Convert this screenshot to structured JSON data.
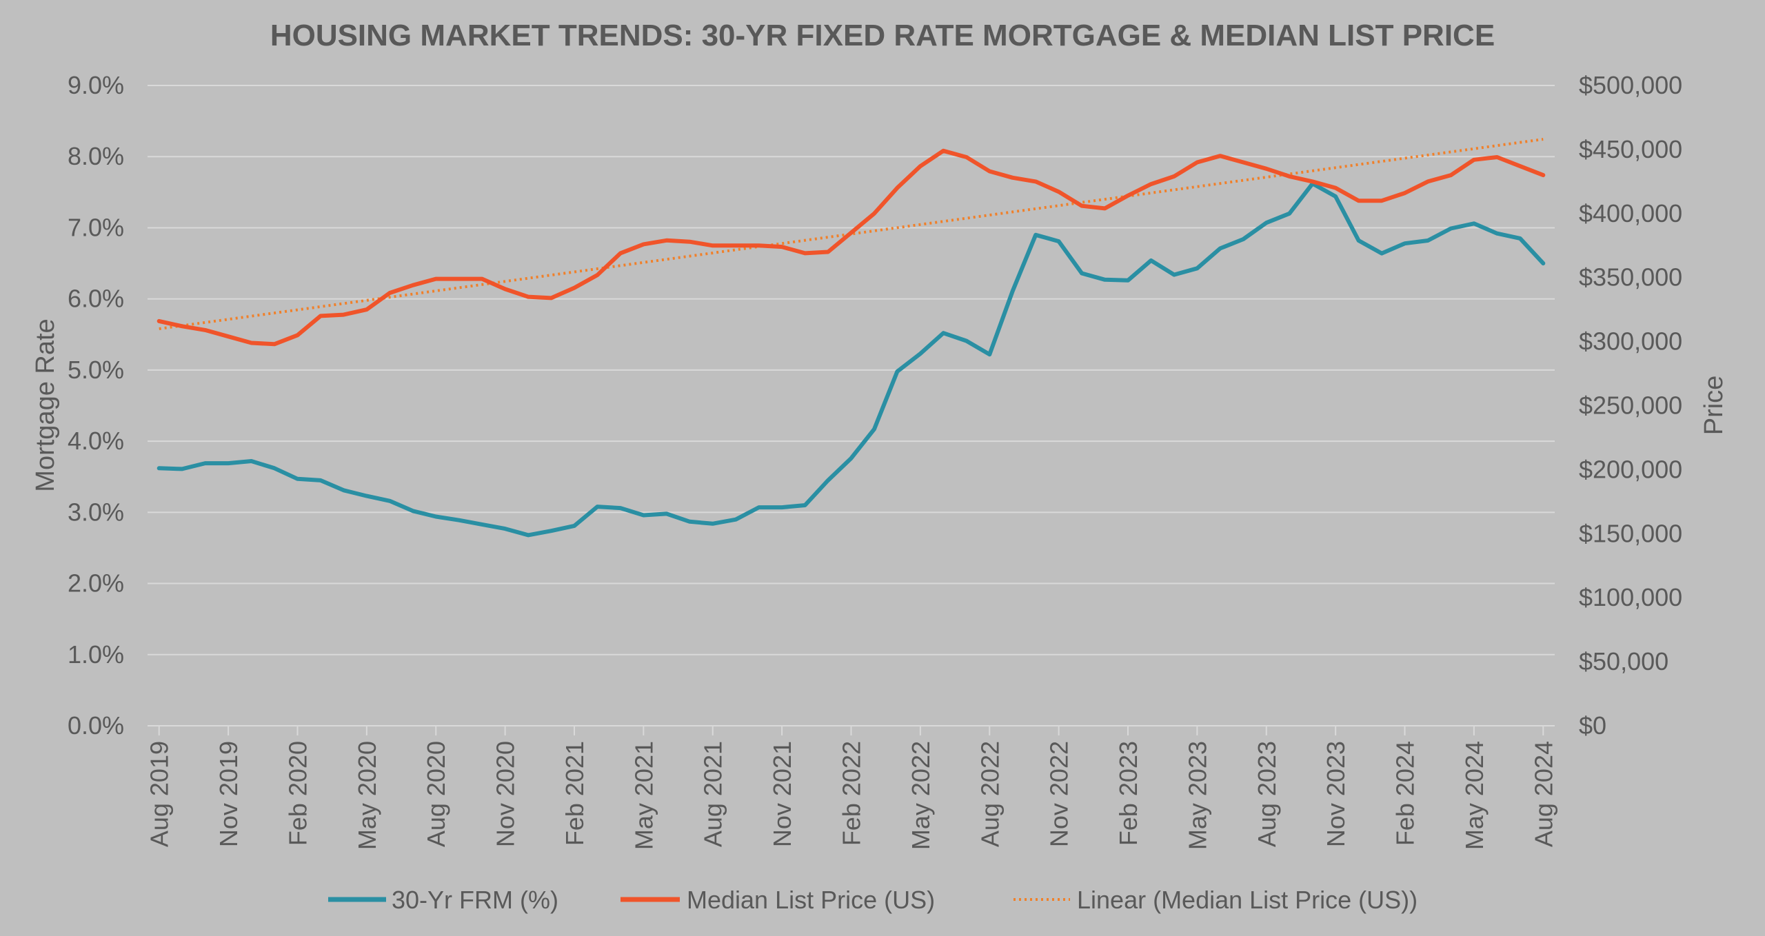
{
  "chart_data": {
    "type": "line",
    "title": "HOUSING MARKET TRENDS: 30-YR FIXED RATE MORTGAGE & MEDIAN LIST PRICE",
    "ylabel": "Mortgage Rate",
    "y2label": "Price",
    "ylim": [
      0,
      9
    ],
    "y2lim": [
      0,
      500000
    ],
    "grid": true,
    "legend_position": "bottom",
    "y_ticks": [
      "0.0%",
      "1.0%",
      "2.0%",
      "3.0%",
      "4.0%",
      "5.0%",
      "6.0%",
      "7.0%",
      "8.0%",
      "9.0%"
    ],
    "y2_ticks": [
      "$0",
      "$50,000",
      "$100,000",
      "$150,000",
      "$200,000",
      "$250,000",
      "$300,000",
      "$350,000",
      "$400,000",
      "$450,000",
      "$500,000"
    ],
    "x_ticks": [
      "Aug 2019",
      "Nov 2019",
      "Feb 2020",
      "May 2020",
      "Aug 2020",
      "Nov 2020",
      "Feb 2021",
      "May 2021",
      "Aug 2021",
      "Nov 2021",
      "Feb 2022",
      "May 2022",
      "Aug 2022",
      "Nov 2022",
      "Feb 2023",
      "May 2023",
      "Aug 2023",
      "Nov 2023",
      "Feb 2024",
      "May 2024",
      "Aug 2024"
    ],
    "x": [
      "Aug 2019",
      "Sep 2019",
      "Oct 2019",
      "Nov 2019",
      "Dec 2019",
      "Jan 2020",
      "Feb 2020",
      "Mar 2020",
      "Apr 2020",
      "May 2020",
      "Jun 2020",
      "Jul 2020",
      "Aug 2020",
      "Sep 2020",
      "Oct 2020",
      "Nov 2020",
      "Dec 2020",
      "Jan 2021",
      "Feb 2021",
      "Mar 2021",
      "Apr 2021",
      "May 2021",
      "Jun 2021",
      "Jul 2021",
      "Aug 2021",
      "Sep 2021",
      "Oct 2021",
      "Nov 2021",
      "Dec 2021",
      "Jan 2022",
      "Feb 2022",
      "Mar 2022",
      "Apr 2022",
      "May 2022",
      "Jun 2022",
      "Jul 2022",
      "Aug 2022",
      "Sep 2022",
      "Oct 2022",
      "Nov 2022",
      "Dec 2022",
      "Jan 2023",
      "Feb 2023",
      "Mar 2023",
      "Apr 2023",
      "May 2023",
      "Jun 2023",
      "Jul 2023",
      "Aug 2023",
      "Sep 2023",
      "Oct 2023",
      "Nov 2023",
      "Dec 2023",
      "Jan 2024",
      "Feb 2024",
      "Mar 2024",
      "Apr 2024",
      "May 2024",
      "Jun 2024",
      "Jul 2024",
      "Aug 2024"
    ],
    "series": [
      {
        "name": "30-Yr FRM (%)",
        "axis": "left",
        "color": "#2a8fa3",
        "values": [
          3.62,
          3.61,
          3.69,
          3.69,
          3.72,
          3.62,
          3.47,
          3.45,
          3.31,
          3.23,
          3.16,
          3.02,
          2.94,
          2.89,
          2.83,
          2.77,
          2.68,
          2.74,
          2.81,
          3.08,
          3.06,
          2.96,
          2.98,
          2.87,
          2.84,
          2.9,
          3.07,
          3.07,
          3.1,
          3.45,
          3.76,
          4.17,
          4.98,
          5.23,
          5.52,
          5.41,
          5.22,
          6.11,
          6.9,
          6.81,
          6.36,
          6.27,
          6.26,
          6.54,
          6.34,
          6.43,
          6.71,
          6.84,
          7.07,
          7.2,
          7.62,
          7.44,
          6.82,
          6.64,
          6.78,
          6.82,
          6.99,
          7.06,
          6.92,
          6.85,
          6.5
        ]
      },
      {
        "name": "Median List Price (US)",
        "axis": "right",
        "color": "#f0542a",
        "values": [
          316000,
          312000,
          309000,
          304000,
          299000,
          298000,
          305000,
          320000,
          321000,
          325000,
          338000,
          344000,
          349000,
          349000,
          349000,
          341000,
          335000,
          334000,
          342000,
          352000,
          369000,
          376000,
          379000,
          378000,
          375000,
          375000,
          375000,
          374000,
          369000,
          370000,
          385000,
          400000,
          420000,
          437000,
          449000,
          444000,
          433000,
          428000,
          425000,
          417000,
          406000,
          404000,
          414000,
          423000,
          429000,
          440000,
          445000,
          440000,
          435000,
          429000,
          425000,
          420000,
          410000,
          410000,
          416000,
          425000,
          430000,
          442000,
          444000,
          437000,
          430000
        ]
      }
    ],
    "trendline": {
      "name": "Linear (Median List Price (US))",
      "axis": "right",
      "color": "#f0802a",
      "style": "dotted",
      "values": [
        310000,
        458000
      ]
    }
  }
}
